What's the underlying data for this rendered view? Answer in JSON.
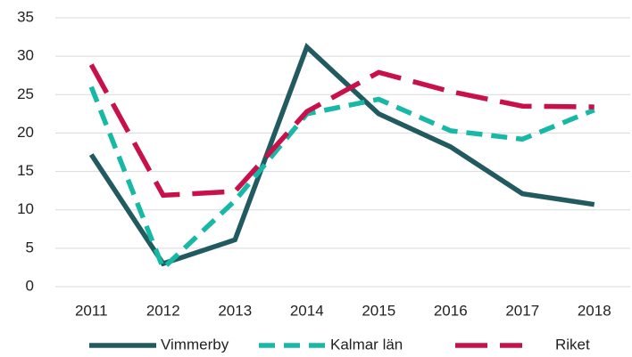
{
  "chart_data": {
    "type": "line",
    "categories": [
      "2011",
      "2012",
      "2013",
      "2014",
      "2015",
      "2016",
      "2017",
      "2018"
    ],
    "series": [
      {
        "name": "Vimmerby",
        "color": "#215a5f",
        "dash": "solid",
        "values": [
          17.2,
          3.0,
          6.1,
          31.2,
          22.5,
          18.2,
          12.1,
          10.7
        ]
      },
      {
        "name": "Kalmar län",
        "color": "#17b8a6",
        "dash": "dashed",
        "values": [
          26.0,
          2.4,
          11.2,
          22.5,
          24.4,
          20.3,
          19.2,
          23.0
        ]
      },
      {
        "name": "Riket",
        "color": "#c8104a",
        "dash": "longdash",
        "values": [
          28.9,
          11.9,
          12.4,
          22.8,
          27.9,
          25.4,
          23.5,
          23.4
        ]
      }
    ],
    "ylim": [
      0,
      35
    ],
    "yticks": [
      0,
      5,
      10,
      15,
      20,
      25,
      30,
      35
    ],
    "grid": true,
    "legend": "bottom"
  }
}
